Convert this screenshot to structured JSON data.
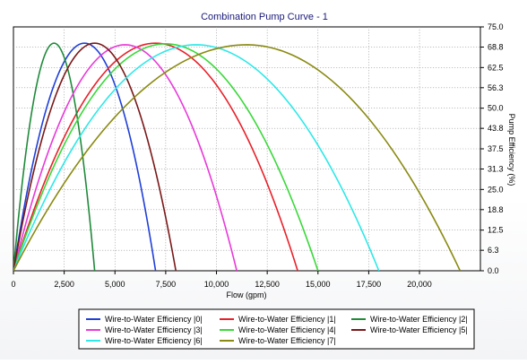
{
  "chart_data": {
    "type": "line",
    "title": "Combination Pump Curve - 1",
    "xlabel": "Flow (gpm)",
    "ylabel": "Pump Efficiency (%)",
    "xlim": [
      0,
      23000
    ],
    "ylim": [
      0,
      75
    ],
    "x_ticks": [
      0,
      2500,
      5000,
      7500,
      10000,
      12500,
      15000,
      17500,
      20000
    ],
    "x_tick_labels": [
      "0",
      "2,500",
      "5,000",
      "7,500",
      "10,000",
      "12,500",
      "15,000",
      "17,500",
      "20,000"
    ],
    "y_ticks": [
      0,
      6.3,
      12.5,
      18.8,
      25,
      31.3,
      37.5,
      43.8,
      50,
      56.3,
      62.5,
      68.8,
      75
    ],
    "y_tick_labels": [
      "0.0",
      "6.3",
      "12.5",
      "18.8",
      "25.0",
      "31.3",
      "37.5",
      "43.8",
      "50.0",
      "56.3",
      "62.5",
      "68.8",
      "75.0"
    ],
    "y_axis_side": "right",
    "grid": true,
    "legend_position": "bottom",
    "series": [
      {
        "name": "Wire-to-Water Efficiency |0|",
        "color": "#1f3fd8",
        "x": [
          0,
          3500,
          7000
        ],
        "y": [
          0,
          70.0,
          0
        ]
      },
      {
        "name": "Wire-to-Water Efficiency |1|",
        "color": "#e8202a",
        "x": [
          0,
          7000,
          14000
        ],
        "y": [
          0,
          70.0,
          0
        ]
      },
      {
        "name": "Wire-to-Water Efficiency |2|",
        "color": "#1f8a3a",
        "x": [
          0,
          2000,
          4000
        ],
        "y": [
          0,
          70.0,
          0
        ]
      },
      {
        "name": "Wire-to-Water Efficiency |3|",
        "color": "#e83ad8",
        "x": [
          0,
          5500,
          11000
        ],
        "y": [
          0,
          69.5,
          0
        ]
      },
      {
        "name": "Wire-to-Water Efficiency |4|",
        "color": "#3ad83a",
        "x": [
          0,
          7500,
          15000
        ],
        "y": [
          0,
          69.8,
          0
        ]
      },
      {
        "name": "Wire-to-Water Efficiency |5|",
        "color": "#7a1818",
        "x": [
          0,
          4000,
          8000
        ],
        "y": [
          0,
          70.0,
          0
        ]
      },
      {
        "name": "Wire-to-Water Efficiency |6|",
        "color": "#2ee8e8",
        "x": [
          0,
          9000,
          18000
        ],
        "y": [
          0,
          69.5,
          0
        ]
      },
      {
        "name": "Wire-to-Water Efficiency |7|",
        "color": "#8a8a12",
        "x": [
          0,
          11500,
          22000
        ],
        "y": [
          0,
          69.5,
          0
        ]
      }
    ]
  }
}
